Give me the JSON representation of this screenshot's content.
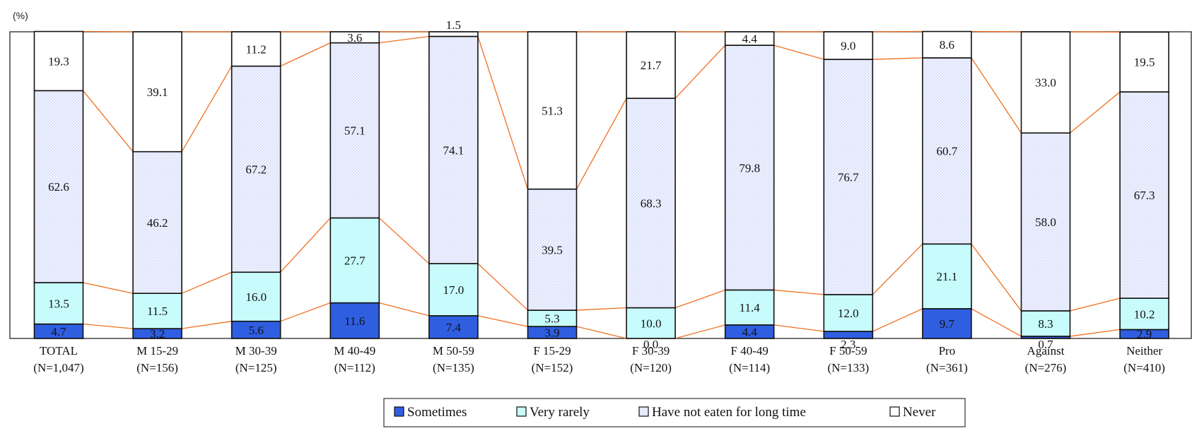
{
  "chart_data": {
    "type": "bar",
    "stacked": true,
    "unit_label": "(%)",
    "ylim": [
      0,
      100
    ],
    "grid": false,
    "legend_position": "bottom-center",
    "categories": [
      {
        "label": "TOTAL",
        "n": "(N=1,047)"
      },
      {
        "label": "M 15-29",
        "n": "(N=156)"
      },
      {
        "label": "M 30-39",
        "n": "(N=125)"
      },
      {
        "label": "M 40-49",
        "n": "(N=112)"
      },
      {
        "label": "M 50-59",
        "n": "(N=135)"
      },
      {
        "label": "F 15-29",
        "n": "(N=152)"
      },
      {
        "label": "F 30-39",
        "n": "(N=120)"
      },
      {
        "label": "F 40-49",
        "n": "(N=114)"
      },
      {
        "label": "F 50-59",
        "n": "(N=133)"
      },
      {
        "label": "Pro",
        "n": "(N=361)"
      },
      {
        "label": "Against",
        "n": "(N=276)"
      },
      {
        "label": "Neither",
        "n": "(N=410)"
      }
    ],
    "series": [
      {
        "name": "Sometimes",
        "color": "#2f5fe0",
        "text_color": "#ffffff",
        "pattern": "solid",
        "values": [
          4.7,
          3.2,
          5.6,
          11.6,
          7.4,
          3.9,
          0.0,
          4.4,
          2.3,
          9.7,
          0.7,
          2.9
        ],
        "labels": [
          "4.7",
          "3.2",
          "5.6",
          "11.6",
          "7.4",
          "3.9",
          "0.0",
          "4.4",
          "2.3",
          "9.7",
          "0.7",
          "2.9"
        ]
      },
      {
        "name": "Very rarely",
        "color": "#c8fcfc",
        "text_color": "#111111",
        "pattern": "solid",
        "values": [
          13.5,
          11.5,
          16.0,
          27.7,
          17.0,
          5.3,
          10.0,
          11.4,
          12.0,
          21.1,
          8.3,
          10.2
        ],
        "labels": [
          "13.5",
          "11.5",
          "16.0",
          "27.7",
          "17.0",
          "5.3",
          "10.0",
          "11.4",
          "12.0",
          "21.1",
          "8.3",
          "10.2"
        ]
      },
      {
        "name": "Have not eaten for long time",
        "color": "#e8ebfa",
        "text_color": "#111111",
        "pattern": "dotted",
        "values": [
          62.6,
          46.2,
          67.2,
          57.1,
          74.1,
          39.5,
          68.3,
          79.8,
          76.7,
          60.7,
          58.0,
          67.3
        ],
        "labels": [
          "62.6",
          "46.2",
          "67.2",
          "57.1",
          "74.1",
          "39.5",
          "68.3",
          "79.8",
          "76.7",
          "60.7",
          "58.0",
          "67.3"
        ]
      },
      {
        "name": "Never",
        "color": "#ffffff",
        "text_color": "#111111",
        "pattern": "solid",
        "values": [
          19.3,
          39.1,
          11.2,
          3.6,
          1.5,
          51.3,
          21.7,
          4.4,
          9.0,
          8.6,
          33.0,
          19.5
        ],
        "labels": [
          "19.3",
          "39.1",
          "11.2",
          "3.6",
          "1.5",
          "51.3",
          "21.7",
          "4.4",
          "9.0",
          "8.6",
          "33.0",
          "19.5"
        ]
      }
    ],
    "connector_color": "#f07020"
  }
}
